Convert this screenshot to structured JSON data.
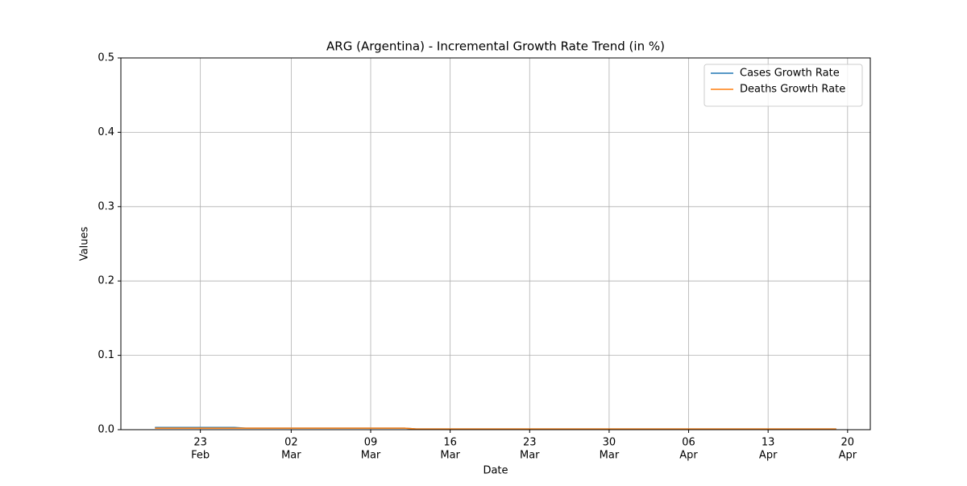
{
  "chart_data": {
    "type": "line",
    "title": "ARG (Argentina) - Incremental Growth Rate Trend (in %)",
    "xlabel": "Date",
    "ylabel": "Values",
    "x": [
      "02-19",
      "02-26",
      "02-27",
      "03-12",
      "03-13",
      "04-19"
    ],
    "series": [
      {
        "name": "Cases Growth Rate",
        "color": "#1f77b4",
        "values": [
          0.003,
          0.003,
          0.002,
          0.002,
          0.001,
          0.001
        ]
      },
      {
        "name": "Deaths Growth Rate",
        "color": "#ff7f0e",
        "values": [
          0.002,
          0.002,
          0.002,
          0.002,
          0.001,
          0.001
        ]
      }
    ],
    "xlim": [
      "02-16",
      "04-22"
    ],
    "xticks": [
      {
        "value": "02-23",
        "label": [
          "23",
          "Feb"
        ]
      },
      {
        "value": "03-02",
        "label": [
          "02",
          "Mar"
        ]
      },
      {
        "value": "03-09",
        "label": [
          "09",
          "Mar"
        ]
      },
      {
        "value": "03-16",
        "label": [
          "16",
          "Mar"
        ]
      },
      {
        "value": "03-23",
        "label": [
          "23",
          "Mar"
        ]
      },
      {
        "value": "03-30",
        "label": [
          "30",
          "Mar"
        ]
      },
      {
        "value": "04-06",
        "label": [
          "06",
          "Apr"
        ]
      },
      {
        "value": "04-13",
        "label": [
          "13",
          "Apr"
        ]
      },
      {
        "value": "04-20",
        "label": [
          "20",
          "Apr"
        ]
      }
    ],
    "ylim": [
      0,
      0.5
    ],
    "yticks": [
      {
        "value": 0,
        "label": "0.0"
      },
      0.1,
      0.2,
      0.3,
      0.4,
      0.5
    ],
    "grid": true,
    "legend": "upper right"
  }
}
